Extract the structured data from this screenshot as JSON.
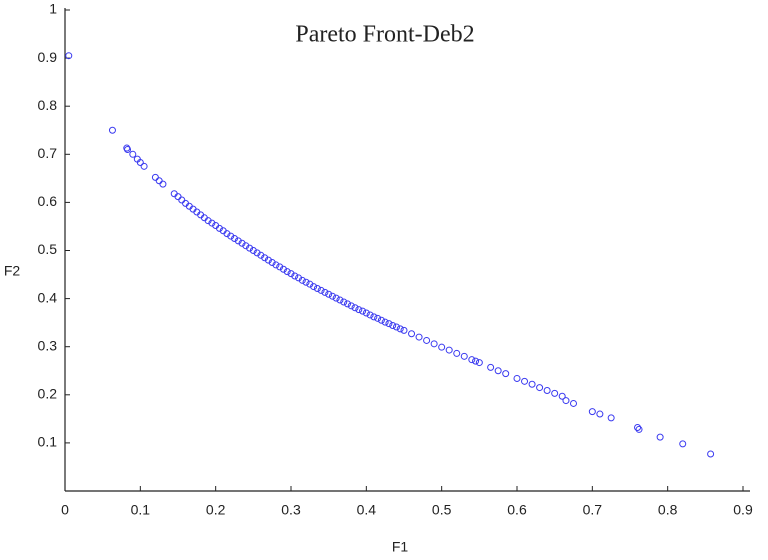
{
  "chart_data": {
    "type": "scatter",
    "title": "Pareto Front-Deb2",
    "x_label": "F1",
    "y_label": "F2",
    "color": "#3a3af0",
    "xlim": [
      0,
      0.9
    ],
    "ylim": [
      0,
      1
    ],
    "xticks": [
      0,
      0.1,
      0.2,
      0.3,
      0.4,
      0.5,
      0.6,
      0.7,
      0.8,
      0.9
    ],
    "yticks": [
      0.1,
      0.2,
      0.3,
      0.4,
      0.5,
      0.6,
      0.7,
      0.8,
      0.9,
      1
    ],
    "x": [
      0.005,
      0.063,
      0.082,
      0.083,
      0.09,
      0.096,
      0.1,
      0.105,
      0.12,
      0.125,
      0.13,
      0.145,
      0.15,
      0.155,
      0.16,
      0.165,
      0.17,
      0.175,
      0.18,
      0.185,
      0.19,
      0.195,
      0.2,
      0.205,
      0.21,
      0.215,
      0.22,
      0.225,
      0.23,
      0.235,
      0.24,
      0.245,
      0.25,
      0.255,
      0.26,
      0.265,
      0.27,
      0.275,
      0.28,
      0.285,
      0.29,
      0.295,
      0.3,
      0.305,
      0.31,
      0.315,
      0.32,
      0.325,
      0.33,
      0.335,
      0.34,
      0.345,
      0.35,
      0.355,
      0.36,
      0.365,
      0.37,
      0.375,
      0.38,
      0.385,
      0.39,
      0.395,
      0.4,
      0.405,
      0.41,
      0.415,
      0.42,
      0.425,
      0.43,
      0.435,
      0.44,
      0.445,
      0.45,
      0.46,
      0.47,
      0.48,
      0.49,
      0.5,
      0.51,
      0.52,
      0.53,
      0.54,
      0.545,
      0.55,
      0.565,
      0.575,
      0.585,
      0.6,
      0.61,
      0.62,
      0.63,
      0.64,
      0.65,
      0.66,
      0.665,
      0.675,
      0.7,
      0.71,
      0.725,
      0.76,
      0.762,
      0.79,
      0.82,
      0.857
    ],
    "values": [
      0.905,
      0.75,
      0.713,
      0.71,
      0.7,
      0.69,
      0.683,
      0.675,
      0.652,
      0.645,
      0.638,
      0.618,
      0.612,
      0.605,
      0.598,
      0.592,
      0.586,
      0.58,
      0.574,
      0.568,
      0.562,
      0.557,
      0.552,
      0.546,
      0.541,
      0.535,
      0.53,
      0.525,
      0.52,
      0.515,
      0.51,
      0.505,
      0.5,
      0.495,
      0.49,
      0.485,
      0.48,
      0.475,
      0.47,
      0.466,
      0.461,
      0.456,
      0.452,
      0.447,
      0.443,
      0.438,
      0.434,
      0.43,
      0.425,
      0.421,
      0.417,
      0.413,
      0.409,
      0.405,
      0.401,
      0.397,
      0.393,
      0.389,
      0.385,
      0.381,
      0.377,
      0.374,
      0.37,
      0.366,
      0.362,
      0.359,
      0.355,
      0.351,
      0.348,
      0.344,
      0.341,
      0.337,
      0.334,
      0.327,
      0.32,
      0.313,
      0.306,
      0.299,
      0.293,
      0.286,
      0.28,
      0.273,
      0.27,
      0.267,
      0.257,
      0.25,
      0.244,
      0.234,
      0.228,
      0.222,
      0.215,
      0.209,
      0.203,
      0.197,
      0.188,
      0.182,
      0.165,
      0.16,
      0.152,
      0.132,
      0.128,
      0.112,
      0.098,
      0.077
    ]
  }
}
